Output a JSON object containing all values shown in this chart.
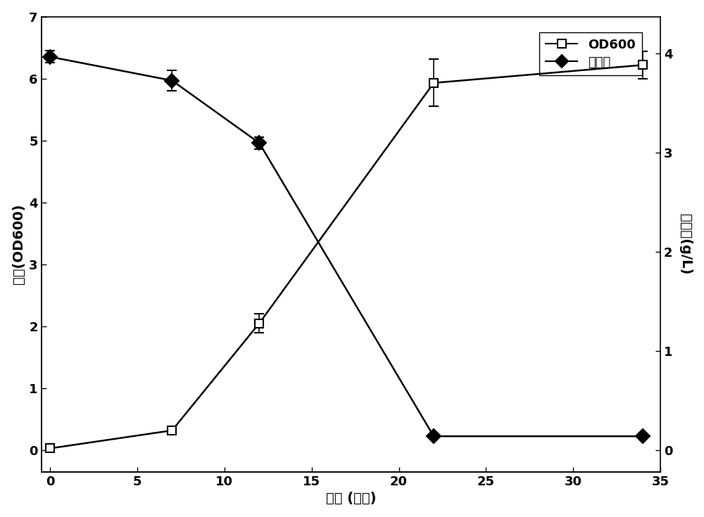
{
  "title": "",
  "xlabel": "时间 (小时)",
  "ylabel_left": "菌浓(OD600)",
  "ylabel_right": "瓜氨酸(g/L)",
  "od600_x": [
    0,
    7,
    12,
    22,
    34
  ],
  "od600_y": [
    0.03,
    0.32,
    2.05,
    5.93,
    6.22
  ],
  "od600_yerr": [
    0.02,
    0.05,
    0.15,
    0.38,
    0.22
  ],
  "citrulline_x": [
    0,
    7,
    12,
    22,
    34
  ],
  "citrulline_y": [
    3.97,
    3.73,
    3.1,
    0.14,
    0.14
  ],
  "citrulline_yerr": [
    0.06,
    0.1,
    0.06,
    0.02,
    0.02
  ],
  "xlim": [
    -0.5,
    35
  ],
  "ylim_left": [
    -0.35,
    7
  ],
  "ylim_right": [
    -0.22,
    4.375
  ],
  "yticks_left": [
    0,
    1,
    2,
    3,
    4,
    5,
    6,
    7
  ],
  "yticks_right": [
    0,
    1,
    2,
    3,
    4
  ],
  "xticks": [
    0,
    5,
    10,
    15,
    20,
    25,
    30,
    35
  ],
  "legend_od600": "OD600",
  "legend_citrulline": "瓜氨酸",
  "line_color": "#000000",
  "background_color": "#ffffff",
  "dot_color": "#d0d0d0",
  "font_size": 13,
  "label_font_size": 14,
  "tick_font_size": 13
}
